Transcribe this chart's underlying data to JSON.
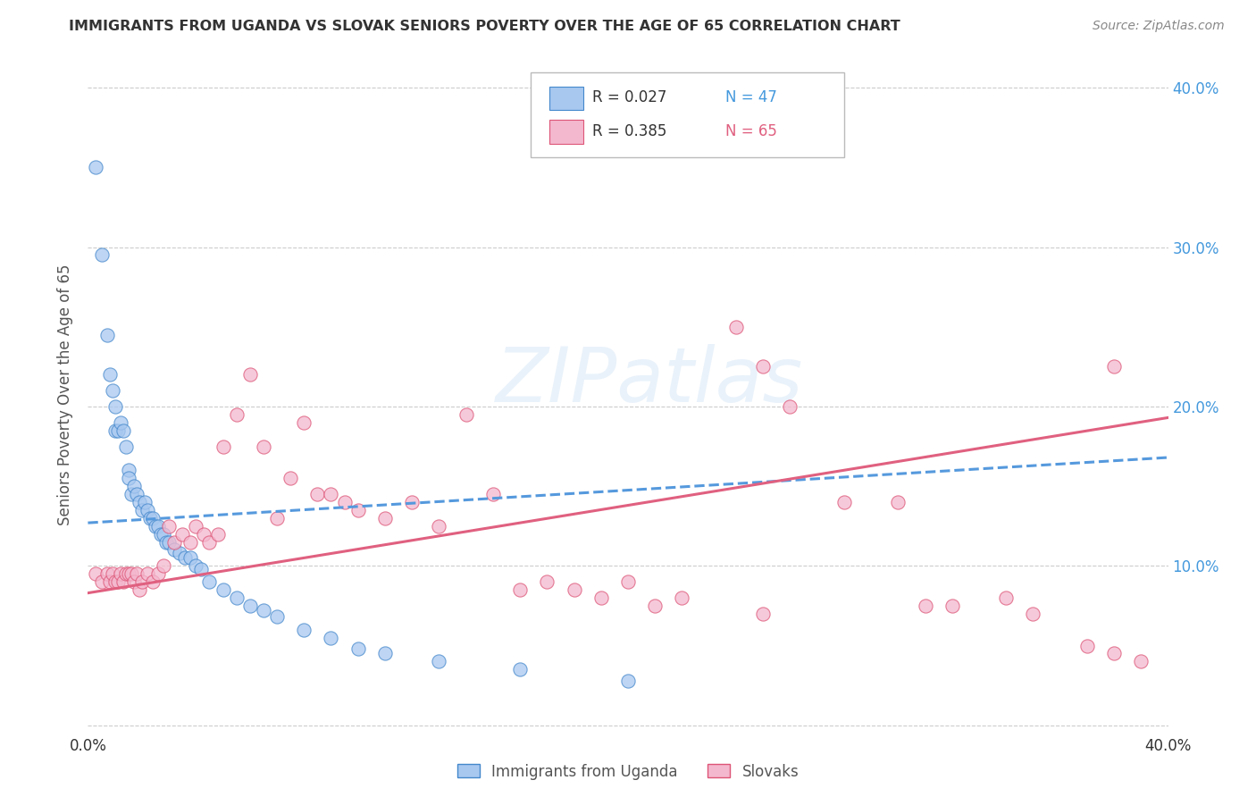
{
  "title": "IMMIGRANTS FROM UGANDA VS SLOVAK SENIORS POVERTY OVER THE AGE OF 65 CORRELATION CHART",
  "source": "Source: ZipAtlas.com",
  "ylabel": "Seniors Poverty Over the Age of 65",
  "xlim": [
    0.0,
    0.4
  ],
  "ylim": [
    -0.005,
    0.42
  ],
  "yticks": [
    0.0,
    0.1,
    0.2,
    0.3,
    0.4
  ],
  "ytick_labels": [
    "",
    "10.0%",
    "20.0%",
    "30.0%",
    "40.0%"
  ],
  "xticks": [
    0.0,
    0.05,
    0.1,
    0.15,
    0.2,
    0.25,
    0.3,
    0.35,
    0.4
  ],
  "xtick_labels": [
    "0.0%",
    "",
    "",
    "",
    "",
    "",
    "",
    "",
    "40.0%"
  ],
  "color_uganda": "#a8c8f0",
  "color_slovak": "#f4b8ce",
  "color_uganda_line": "#5599dd",
  "color_slovak_line": "#e06080",
  "color_uganda_edge": "#4488cc",
  "color_slovak_edge": "#dd5577",
  "watermark": "ZIPatlas",
  "legend_r1_label": "R = 0.027",
  "legend_n1_label": "N = 47",
  "legend_r2_label": "R = 0.385",
  "legend_n2_label": "N = 65",
  "legend_label1": "Immigrants from Uganda",
  "legend_label2": "Slovaks",
  "uganda_scatter_x": [
    0.003,
    0.005,
    0.007,
    0.008,
    0.009,
    0.01,
    0.01,
    0.011,
    0.012,
    0.013,
    0.014,
    0.015,
    0.015,
    0.016,
    0.017,
    0.018,
    0.019,
    0.02,
    0.021,
    0.022,
    0.023,
    0.024,
    0.025,
    0.026,
    0.027,
    0.028,
    0.029,
    0.03,
    0.032,
    0.034,
    0.036,
    0.038,
    0.04,
    0.042,
    0.045,
    0.05,
    0.055,
    0.06,
    0.065,
    0.07,
    0.08,
    0.09,
    0.1,
    0.11,
    0.13,
    0.16,
    0.2
  ],
  "uganda_scatter_y": [
    0.35,
    0.295,
    0.245,
    0.22,
    0.21,
    0.185,
    0.2,
    0.185,
    0.19,
    0.185,
    0.175,
    0.16,
    0.155,
    0.145,
    0.15,
    0.145,
    0.14,
    0.135,
    0.14,
    0.135,
    0.13,
    0.13,
    0.125,
    0.125,
    0.12,
    0.12,
    0.115,
    0.115,
    0.11,
    0.108,
    0.105,
    0.105,
    0.1,
    0.098,
    0.09,
    0.085,
    0.08,
    0.075,
    0.072,
    0.068,
    0.06,
    0.055,
    0.048,
    0.045,
    0.04,
    0.035,
    0.028
  ],
  "slovak_scatter_x": [
    0.003,
    0.005,
    0.007,
    0.008,
    0.009,
    0.01,
    0.011,
    0.012,
    0.013,
    0.014,
    0.015,
    0.016,
    0.017,
    0.018,
    0.019,
    0.02,
    0.022,
    0.024,
    0.026,
    0.028,
    0.03,
    0.032,
    0.035,
    0.038,
    0.04,
    0.043,
    0.045,
    0.048,
    0.05,
    0.055,
    0.06,
    0.065,
    0.07,
    0.075,
    0.08,
    0.085,
    0.09,
    0.095,
    0.1,
    0.11,
    0.12,
    0.13,
    0.14,
    0.15,
    0.16,
    0.17,
    0.18,
    0.19,
    0.2,
    0.21,
    0.22,
    0.24,
    0.25,
    0.26,
    0.28,
    0.3,
    0.31,
    0.32,
    0.34,
    0.35,
    0.37,
    0.38,
    0.39,
    0.25,
    0.38
  ],
  "slovak_scatter_y": [
    0.095,
    0.09,
    0.095,
    0.09,
    0.095,
    0.09,
    0.09,
    0.095,
    0.09,
    0.095,
    0.095,
    0.095,
    0.09,
    0.095,
    0.085,
    0.09,
    0.095,
    0.09,
    0.095,
    0.1,
    0.125,
    0.115,
    0.12,
    0.115,
    0.125,
    0.12,
    0.115,
    0.12,
    0.175,
    0.195,
    0.22,
    0.175,
    0.13,
    0.155,
    0.19,
    0.145,
    0.145,
    0.14,
    0.135,
    0.13,
    0.14,
    0.125,
    0.195,
    0.145,
    0.085,
    0.09,
    0.085,
    0.08,
    0.09,
    0.075,
    0.08,
    0.25,
    0.225,
    0.2,
    0.14,
    0.14,
    0.075,
    0.075,
    0.08,
    0.07,
    0.05,
    0.045,
    0.04,
    0.07,
    0.225
  ],
  "uganda_trend_x": [
    0.0,
    0.4
  ],
  "uganda_trend_y": [
    0.127,
    0.168
  ],
  "slovak_trend_x": [
    0.0,
    0.4
  ],
  "slovak_trend_y": [
    0.083,
    0.193
  ],
  "background_color": "#ffffff",
  "grid_color": "#cccccc"
}
